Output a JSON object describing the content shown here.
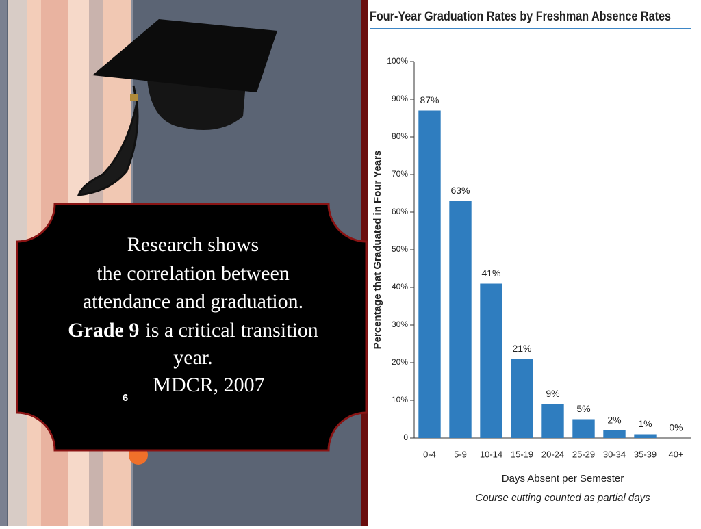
{
  "text_box": {
    "line1": "Research shows",
    "line2": "the correlation between",
    "line3": "attendance and graduation.",
    "line4_bold": "Grade 9",
    "line4": "is a critical transition",
    "line5": "year.",
    "citation": "MDCR, 2007",
    "slide_number": "6"
  },
  "chart_data": {
    "type": "bar",
    "title": "Four-Year Graduation Rates by Freshman Absence Rates",
    "y_label": "Percentage that Graduated in Four Years",
    "x_label": "Days Absent per Semester",
    "note": "Course cutting counted as partial days",
    "categories": [
      "0-4",
      "5-9",
      "10-14",
      "15-19",
      "20-24",
      "25-29",
      "30-34",
      "35-39",
      "40+"
    ],
    "values": [
      87,
      63,
      41,
      21,
      9,
      5,
      2,
      1,
      0
    ],
    "value_labels": [
      "87%",
      "63%",
      "41%",
      "21%",
      "9%",
      "5%",
      "2%",
      "1%",
      "0%"
    ],
    "color": "#2f7dbf",
    "ylim": [
      0,
      100
    ],
    "yticks": [
      0,
      {
        "value": 10,
        "label": "10%"
      },
      {
        "value": 20,
        "label": "20%"
      },
      {
        "value": 30,
        "label": "30%"
      },
      {
        "value": 40,
        "label": "40%"
      },
      {
        "value": 50,
        "label": "50%"
      },
      {
        "value": 60,
        "label": "60%"
      },
      {
        "value": 70,
        "label": "70%"
      },
      {
        "value": 80,
        "label": "80%"
      },
      {
        "value": 90,
        "label": "90%"
      },
      {
        "value": 100,
        "label": "100%"
      }
    ],
    "grid": false
  }
}
